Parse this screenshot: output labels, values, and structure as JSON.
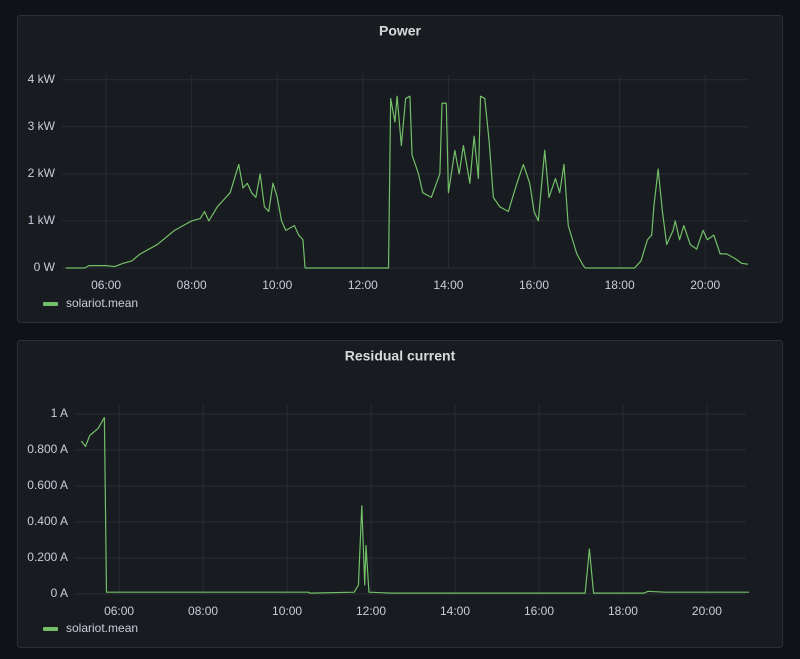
{
  "chart_data": [
    {
      "type": "line",
      "title": "Power",
      "x": [
        5.06,
        5.5,
        5.6,
        6.0,
        6.2,
        6.4,
        6.6,
        6.8,
        7.0,
        7.2,
        7.4,
        7.6,
        7.8,
        8.0,
        8.2,
        8.3,
        8.4,
        8.6,
        8.8,
        8.9,
        9.0,
        9.1,
        9.2,
        9.3,
        9.4,
        9.5,
        9.6,
        9.7,
        9.8,
        9.9,
        10.0,
        10.1,
        10.2,
        10.4,
        10.5,
        10.6,
        10.65,
        12.0,
        12.6,
        12.65,
        12.75,
        12.8,
        12.9,
        13.0,
        13.1,
        13.15,
        13.3,
        13.4,
        13.6,
        13.8,
        13.85,
        13.95,
        14.0,
        14.15,
        14.25,
        14.35,
        14.5,
        14.6,
        14.7,
        14.75,
        14.85,
        14.95,
        15.05,
        15.2,
        15.4,
        15.6,
        15.75,
        15.9,
        16.0,
        16.1,
        16.25,
        16.35,
        16.5,
        16.6,
        16.7,
        16.8,
        16.9,
        17.0,
        17.15,
        17.2,
        18.35,
        18.5,
        18.65,
        18.75,
        18.8,
        18.9,
        19.0,
        19.1,
        19.25,
        19.3,
        19.4,
        19.5,
        19.65,
        19.8,
        19.95,
        20.05,
        20.2,
        20.35,
        20.5,
        20.7,
        20.85,
        21.0
      ],
      "series": [
        {
          "name": "solariot.mean",
          "color": "#73bf69",
          "values": [
            0,
            0,
            0.05,
            0.05,
            0.03,
            0.1,
            0.15,
            0.3,
            0.4,
            0.5,
            0.65,
            0.8,
            0.9,
            1.0,
            1.05,
            1.2,
            1.0,
            1.3,
            1.5,
            1.6,
            1.9,
            2.2,
            1.7,
            1.8,
            1.6,
            1.5,
            2.0,
            1.3,
            1.2,
            1.8,
            1.5,
            1.0,
            0.8,
            0.9,
            0.7,
            0.6,
            0,
            0,
            0,
            3.6,
            3.1,
            3.65,
            2.6,
            3.6,
            3.65,
            2.4,
            2.0,
            1.6,
            1.5,
            2.0,
            3.5,
            3.5,
            1.6,
            2.5,
            2.0,
            2.6,
            1.8,
            2.8,
            1.9,
            3.65,
            3.6,
            2.7,
            1.5,
            1.3,
            1.2,
            1.8,
            2.2,
            1.8,
            1.2,
            1.0,
            2.5,
            1.5,
            1.9,
            1.6,
            2.2,
            0.9,
            0.6,
            0.3,
            0.05,
            0,
            0,
            0.15,
            0.6,
            0.7,
            1.3,
            2.1,
            1.2,
            0.5,
            0.8,
            1.0,
            0.6,
            0.9,
            0.5,
            0.4,
            0.8,
            0.6,
            0.7,
            0.3,
            0.3,
            0.2,
            0.1,
            0.08
          ]
        }
      ],
      "xlim": [
        4.97,
        21.0
      ],
      "xticks": [
        {
          "value": 6,
          "label": "06:00"
        },
        {
          "value": 8,
          "label": "08:00"
        },
        {
          "value": 10,
          "label": "10:00"
        },
        {
          "value": 12,
          "label": "12:00"
        },
        {
          "value": 14,
          "label": "14:00"
        },
        {
          "value": 16,
          "label": "16:00"
        },
        {
          "value": 18,
          "label": "18:00"
        },
        {
          "value": 20,
          "label": "20:00"
        }
      ],
      "ylim": [
        0,
        4.1
      ],
      "yticks": [
        {
          "value": 0,
          "label": "0 W"
        },
        {
          "value": 1,
          "label": "1 kW"
        },
        {
          "value": 2,
          "label": "2 kW"
        },
        {
          "value": 3,
          "label": "3 kW"
        },
        {
          "value": 4,
          "label": "4 kW"
        }
      ],
      "grid": true
    },
    {
      "type": "line",
      "title": "Residual current",
      "x": [
        5.1,
        5.2,
        5.3,
        5.4,
        5.5,
        5.6,
        5.65,
        5.7,
        10.5,
        10.55,
        11.6,
        11.7,
        11.78,
        11.85,
        11.88,
        11.95,
        12.5,
        17.1,
        17.2,
        17.3,
        18.5,
        18.6,
        19.0,
        21.0
      ],
      "series": [
        {
          "name": "solariot.mean",
          "color": "#73bf69",
          "values": [
            0.85,
            0.82,
            0.88,
            0.9,
            0.92,
            0.96,
            0.98,
            0.01,
            0.01,
            0.005,
            0.01,
            0.05,
            0.49,
            0.05,
            0.27,
            0.01,
            0.005,
            0.005,
            0.25,
            0.005,
            0.005,
            0.015,
            0.01,
            0.01
          ]
        }
      ],
      "xlim": [
        4.95,
        20.93
      ],
      "xticks": [
        {
          "value": 6,
          "label": "06:00"
        },
        {
          "value": 8,
          "label": "08:00"
        },
        {
          "value": 10,
          "label": "10:00"
        },
        {
          "value": 12,
          "label": "12:00"
        },
        {
          "value": 14,
          "label": "14:00"
        },
        {
          "value": 16,
          "label": "16:00"
        },
        {
          "value": 18,
          "label": "18:00"
        },
        {
          "value": 20,
          "label": "20:00"
        }
      ],
      "ylim": [
        0,
        1.05
      ],
      "yticks": [
        {
          "value": 0,
          "label": "0 A"
        },
        {
          "value": 0.2,
          "label": "0.200 A"
        },
        {
          "value": 0.4,
          "label": "0.400 A"
        },
        {
          "value": 0.6,
          "label": "0.600 A"
        },
        {
          "value": 0.8,
          "label": "0.800 A"
        },
        {
          "value": 1,
          "label": "1 A"
        }
      ],
      "grid": true
    }
  ]
}
